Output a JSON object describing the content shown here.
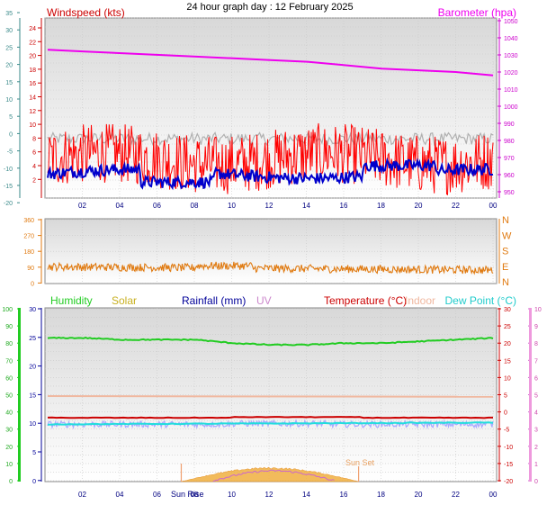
{
  "title": "24 hour graph day : 12 February 2025",
  "colors": {
    "windspeed": "#ff0000",
    "windspeed_avg": "#0000cc",
    "gust_grey": "#b0b0b0",
    "barometer": "#ee00ee",
    "wind_dir": "#e07a10",
    "humidity": "#22cc22",
    "solar": "#e8a020",
    "rainfall": "#000099",
    "uv": "#cc88cc",
    "temperature": "#cc0000",
    "indoor": "#f0b8a0",
    "dewpoint": "#22dddd",
    "temp_band": "#aaaaff"
  },
  "x_ticks": [
    "02",
    "04",
    "06",
    "08",
    "10",
    "12",
    "14",
    "16",
    "18",
    "20",
    "22",
    "00"
  ],
  "panel1": {
    "wind_label": "Windspeed (kts)",
    "baro_label": "Barometer (hpa)",
    "far_left_ticks": [
      "35",
      "30",
      "25",
      "20",
      "15",
      "10",
      "5",
      "0",
      "-5",
      "-10",
      "-15",
      "-20"
    ],
    "wind_ticks": [
      "24",
      "22",
      "20",
      "18",
      "16",
      "14",
      "12",
      "10",
      "8",
      "6",
      "4",
      "2"
    ],
    "baro_ticks": [
      "1050",
      "1040",
      "1030",
      "1020",
      "1010",
      "1000",
      "990",
      "980",
      "970",
      "960",
      "950"
    ],
    "baro_ticks_raw": [
      "1050",
      "1040",
      "1030",
      "1020",
      "1010",
      "1000",
      "990",
      "980",
      "970",
      "960",
      "950"
    ]
  },
  "panel2": {
    "deg_ticks": [
      "360",
      "270",
      "180",
      "90",
      "0"
    ],
    "dir_labels": [
      "N",
      "W",
      "S",
      "E",
      "N"
    ]
  },
  "panel3": {
    "labels": {
      "humidity": "Humidity",
      "solar": "Solar",
      "rainfall": "Rainfall (mm)",
      "uv": "UV",
      "temperature": "Temperature (°C)",
      "indoor": "Indoor",
      "dewpoint": "Dew Point (°C)"
    },
    "hum_ticks": [
      "100",
      "90",
      "80",
      "70",
      "60",
      "50",
      "40",
      "30",
      "20",
      "10",
      "0"
    ],
    "rain_ticks": [
      "30",
      "25",
      "20",
      "15",
      "10",
      "5",
      "0"
    ],
    "temp_ticks": [
      "30",
      "25",
      "20",
      "15",
      "10",
      "5",
      "0",
      "-5",
      "-10",
      "-15",
      "-20"
    ],
    "uv_ticks": [
      "10",
      "9",
      "8",
      "7",
      "6",
      "5",
      "4",
      "3",
      "2",
      "1",
      "0"
    ],
    "sun_rise": "Sun Rise",
    "sun_set": "Sun Set"
  },
  "chart_data": [
    {
      "type": "line",
      "x": [
        "00",
        "02",
        "04",
        "06",
        "08",
        "10",
        "12",
        "14",
        "16",
        "18",
        "20",
        "22",
        "00"
      ],
      "series": [
        {
          "name": "Windspeed (kts)",
          "values": [
            6,
            7,
            6,
            5,
            6,
            6,
            7,
            6,
            6,
            7,
            7,
            6,
            6
          ]
        },
        {
          "name": "Barometer (hpa)",
          "values": [
            1033,
            1032,
            1031,
            1030,
            1029,
            1028,
            1027,
            1026,
            1024,
            1022,
            1021,
            1020,
            1018
          ]
        }
      ],
      "ylim": [
        0,
        25
      ]
    },
    {
      "type": "scatter",
      "x": [
        "00",
        "02",
        "04",
        "06",
        "08",
        "10",
        "12",
        "14",
        "16",
        "18",
        "20",
        "22",
        "00"
      ],
      "series": [
        {
          "values": [
            95,
            95,
            100,
            100,
            95,
            90,
            95,
            90,
            80,
            75,
            75,
            80,
            75
          ]
        }
      ],
      "ylim": [
        0,
        360
      ]
    },
    {
      "type": "line",
      "x": [
        "00",
        "02",
        "04",
        "06",
        "08",
        "10",
        "12",
        "14",
        "16",
        "18",
        "20",
        "22",
        "00"
      ],
      "series": [
        {
          "name": "Humidity",
          "values": [
            83,
            83,
            82,
            82,
            82,
            80,
            79,
            79,
            80,
            80,
            81,
            82,
            83
          ]
        },
        {
          "name": "Temperature (°C)",
          "values": [
            -2,
            -2,
            -2,
            -2,
            -2,
            -2,
            -1.5,
            -1.5,
            -1.5,
            -2,
            -2,
            -2,
            -2
          ]
        },
        {
          "name": "Dew Point (°C)",
          "values": [
            -3.5,
            -3.5,
            -3.5,
            -3.5,
            -3.5,
            -3.5,
            -3.5,
            -3.5,
            -3.5,
            -3.5,
            -3.2,
            -3.2,
            -3
          ]
        },
        {
          "name": "Indoor",
          "values": [
            4.5,
            4.5,
            4.5,
            4.5,
            4.5,
            4.5,
            4.5,
            4.5,
            4.5,
            4.5,
            4.5,
            4.5,
            4.5
          ]
        },
        {
          "name": "Solar",
          "values": [
            0,
            0,
            0,
            0,
            0,
            2,
            5,
            5,
            2,
            0,
            0,
            0,
            0
          ]
        }
      ]
    }
  ]
}
